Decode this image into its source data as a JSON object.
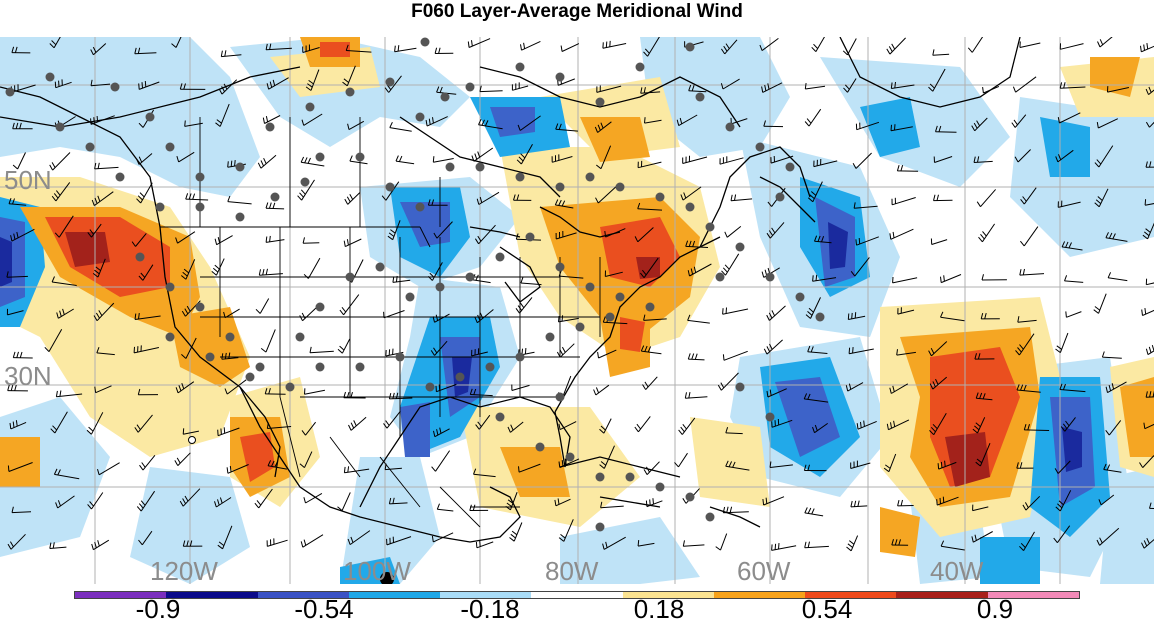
{
  "title": "F060 Layer-Average Meridional Wind",
  "lat_labels": [
    "50N",
    "30N"
  ],
  "lon_labels": [
    "120W",
    "100W",
    "80W",
    "60W",
    "40W"
  ],
  "colorbar": {
    "colors": [
      "#7b2fbe",
      "#0b0b8a",
      "#3a52c4",
      "#1fa8e8",
      "#a9dcf7",
      "#ffffff",
      "#fbe391",
      "#f7a21b",
      "#ee4a1c",
      "#a8201a",
      "#f28ab8"
    ],
    "labels": [
      "-0.9",
      "-0.54",
      "-0.18",
      "0.18",
      "0.54",
      "0.9"
    ]
  },
  "palette": {
    "dark_blue": "#1a2a9e",
    "blue": "#3d63c9",
    "mid_blue": "#22a9e9",
    "light_blue": "#bfe3f7",
    "light_yellow": "#fbe9a3",
    "orange": "#f5a623",
    "red_orange": "#ea4f1f",
    "dark_red": "#a3221b",
    "station_dot": "#555555",
    "coast": "#000000"
  }
}
